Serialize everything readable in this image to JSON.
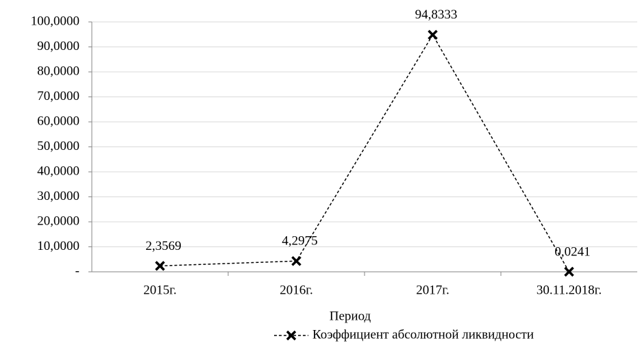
{
  "chart_data": {
    "type": "line",
    "x_label": "Период",
    "categories": [
      "2015г.",
      "2016г.",
      "2017г.",
      "30.11.2018г."
    ],
    "series": [
      {
        "name": "Коэффициент абсолютной ликвидности",
        "color": "#000000",
        "values": [
          2.3569,
          4.2975,
          94.8333,
          0.0241
        ],
        "value_labels": [
          "2,3569",
          "4,2975",
          "94,8333",
          "0,0241"
        ]
      }
    ],
    "ylim": [
      0,
      100
    ],
    "yticks": [
      {
        "value": 0,
        "label": "-"
      },
      {
        "value": 10,
        "label": "10,0000"
      },
      {
        "value": 20,
        "label": "20,0000"
      },
      {
        "value": 30,
        "label": "30,0000"
      },
      {
        "value": 40,
        "label": "40,0000"
      },
      {
        "value": 50,
        "label": "50,0000"
      },
      {
        "value": 60,
        "label": "60,0000"
      },
      {
        "value": 70,
        "label": "70,0000"
      },
      {
        "value": 80,
        "label": "80,0000"
      },
      {
        "value": 90,
        "label": "90,0000"
      },
      {
        "value": 100,
        "label": "100,0000"
      }
    ],
    "grid": true,
    "legend": "bottom"
  }
}
